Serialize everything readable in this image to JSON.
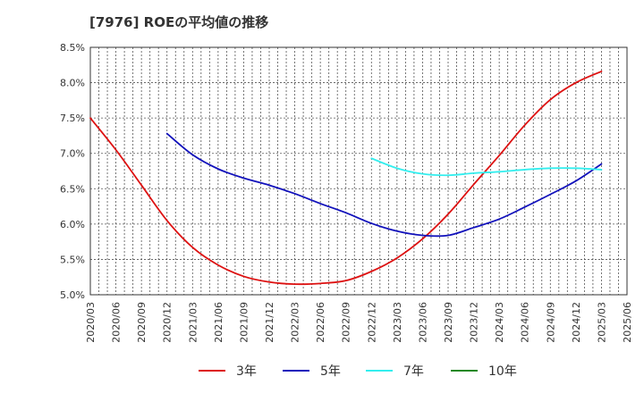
{
  "chart_data": {
    "type": "line",
    "title": "[7976]  ROEの平均値の推移",
    "xlabel": "",
    "ylabel": "",
    "ylim": [
      5.0,
      8.5
    ],
    "yticks": [
      5.0,
      5.5,
      6.0,
      6.5,
      7.0,
      7.5,
      8.0,
      8.5
    ],
    "ytick_labels": [
      "5.0%",
      "5.5%",
      "6.0%",
      "6.5%",
      "7.0%",
      "7.5%",
      "8.0%",
      "8.5%"
    ],
    "categories": [
      "2020/03",
      "2020/06",
      "2020/09",
      "2020/12",
      "2021/03",
      "2021/06",
      "2021/09",
      "2021/12",
      "2022/03",
      "2022/06",
      "2022/09",
      "2022/12",
      "2023/03",
      "2023/06",
      "2023/09",
      "2023/12",
      "2024/03",
      "2024/06",
      "2024/09",
      "2024/12",
      "2025/03",
      "2025/06"
    ],
    "grid": true,
    "legend_position": "bottom",
    "series": [
      {
        "name": "3年",
        "color": "#dd1111",
        "values": [
          7.5,
          7.05,
          6.55,
          6.05,
          5.67,
          5.42,
          5.26,
          5.18,
          5.15,
          5.16,
          5.2,
          5.33,
          5.52,
          5.79,
          6.14,
          6.56,
          6.97,
          7.4,
          7.76,
          8.0,
          8.16,
          null
        ]
      },
      {
        "name": "5年",
        "color": "#1111bb",
        "values": [
          null,
          null,
          null,
          7.28,
          6.98,
          6.78,
          6.65,
          6.55,
          6.43,
          6.29,
          6.16,
          6.01,
          5.9,
          5.84,
          5.84,
          5.95,
          6.07,
          6.24,
          6.42,
          6.61,
          6.85,
          null
        ]
      },
      {
        "name": "7年",
        "color": "#33eeee",
        "values": [
          null,
          null,
          null,
          null,
          null,
          null,
          null,
          null,
          null,
          null,
          null,
          6.93,
          6.79,
          6.71,
          6.69,
          6.72,
          6.74,
          6.77,
          6.79,
          6.79,
          6.77,
          null
        ]
      },
      {
        "name": "10年",
        "color": "#228822",
        "values": [
          null,
          null,
          null,
          null,
          null,
          null,
          null,
          null,
          null,
          null,
          null,
          null,
          null,
          null,
          null,
          null,
          null,
          null,
          null,
          null,
          null,
          null
        ]
      }
    ]
  }
}
